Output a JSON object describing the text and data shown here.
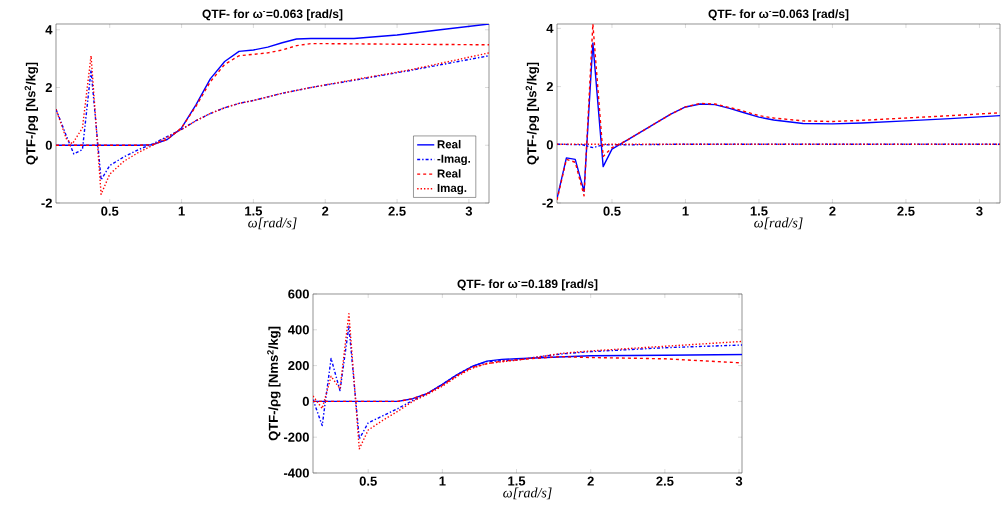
{
  "chart_data": [
    {
      "type": "line",
      "title": "QTF- for ω$^{-}$=0.063 [rad/s]",
      "xlabel": "ω[rad/s]",
      "ylabel": "QTF-/ρg [Ns$^{2}$/kg]",
      "xlim": [
        0.126,
        3.14
      ],
      "ylim": [
        -2,
        4.2
      ],
      "xticks": [
        0.5,
        1,
        1.5,
        2,
        2.5,
        3
      ],
      "yticks": [
        -2,
        0,
        2,
        4
      ],
      "legend": "bottom right",
      "series": [
        {
          "name": "Real",
          "color": "#0000ff",
          "line_style": "solid",
          "x": [
            0.126,
            0.3,
            0.5,
            0.7,
            0.8,
            0.9,
            1.0,
            1.1,
            1.2,
            1.3,
            1.4,
            1.5,
            1.6,
            1.7,
            1.8,
            1.9,
            2.0,
            2.2,
            2.5,
            2.8,
            3.14
          ],
          "values": [
            0,
            0,
            0,
            0,
            0.02,
            0.2,
            0.6,
            1.4,
            2.3,
            2.9,
            3.25,
            3.3,
            3.4,
            3.55,
            3.68,
            3.7,
            3.7,
            3.7,
            3.82,
            4.0,
            4.2
          ]
        },
        {
          "name": "-Imag.",
          "color": "#0000ff",
          "line_style": "dashdot",
          "x": [
            0.126,
            0.2,
            0.25,
            0.31,
            0.37,
            0.44,
            0.5,
            0.6,
            0.7,
            0.8,
            0.9,
            1.0,
            1.1,
            1.2,
            1.3,
            1.4,
            1.5,
            1.7,
            1.9,
            2.2,
            2.6,
            3.14
          ],
          "values": [
            1.25,
            0.3,
            -0.3,
            -0.15,
            2.6,
            -1.2,
            -0.7,
            -0.4,
            -0.15,
            0.05,
            0.3,
            0.55,
            0.85,
            1.1,
            1.3,
            1.45,
            1.55,
            1.8,
            2.0,
            2.25,
            2.6,
            3.1
          ]
        },
        {
          "name": "Real",
          "color": "#ff0000",
          "line_style": "dashed",
          "x": [
            0.126,
            0.3,
            0.5,
            0.7,
            0.8,
            0.9,
            1.0,
            1.1,
            1.2,
            1.3,
            1.4,
            1.5,
            1.6,
            1.7,
            1.8,
            1.9,
            2.0,
            2.5,
            3.14
          ],
          "values": [
            0,
            0,
            0,
            0,
            0.02,
            0.2,
            0.6,
            1.35,
            2.2,
            2.8,
            3.1,
            3.15,
            3.2,
            3.3,
            3.45,
            3.52,
            3.52,
            3.5,
            3.48
          ]
        },
        {
          "name": "Imag.",
          "color": "#ff0000",
          "line_style": "dotted",
          "x": [
            0.126,
            0.2,
            0.24,
            0.31,
            0.37,
            0.44,
            0.5,
            0.6,
            0.7,
            0.8,
            0.9,
            1.0,
            1.1,
            1.2,
            1.3,
            1.4,
            1.5,
            1.7,
            1.9,
            2.2,
            2.6,
            3.14
          ],
          "values": [
            1.25,
            0.2,
            0.05,
            0.6,
            3.1,
            -1.7,
            -1.0,
            -0.55,
            -0.25,
            0.0,
            0.28,
            0.55,
            0.85,
            1.1,
            1.3,
            1.45,
            1.55,
            1.8,
            2.0,
            2.27,
            2.62,
            3.2
          ]
        }
      ]
    },
    {
      "type": "line",
      "title": "QTF- for ω$^{-}$=0.063 [rad/s]",
      "xlabel": "ω[rad/s]",
      "ylabel": "QTF-/ρg [Ns$^{2}$/kg]",
      "xlim": [
        0.126,
        3.14
      ],
      "ylim": [
        -2,
        4.15
      ],
      "xticks": [
        0.5,
        1,
        1.5,
        2,
        2.5,
        3
      ],
      "yticks": [
        -2,
        0,
        2,
        4
      ],
      "series": [
        {
          "color": "#0000ff",
          "line_style": "solid",
          "x": [
            0.126,
            0.19,
            0.25,
            0.31,
            0.37,
            0.44,
            0.5,
            0.6,
            0.7,
            0.8,
            0.9,
            1.0,
            1.1,
            1.2,
            1.3,
            1.4,
            1.5,
            1.6,
            1.8,
            2.0,
            2.2,
            2.5,
            2.8,
            3.14
          ],
          "values": [
            -1.85,
            -0.45,
            -0.5,
            -1.6,
            3.5,
            -0.75,
            -0.15,
            0.15,
            0.45,
            0.75,
            1.05,
            1.3,
            1.4,
            1.38,
            1.25,
            1.1,
            0.95,
            0.85,
            0.73,
            0.72,
            0.75,
            0.82,
            0.9,
            1.0
          ]
        },
        {
          "color": "#0000ff",
          "line_style": "dashdot",
          "x": [
            0.126,
            0.3,
            0.37,
            0.44,
            0.6,
            1.0,
            2.0,
            3.14
          ],
          "values": [
            0.02,
            0.0,
            -0.1,
            0.0,
            0.0,
            0.02,
            0.02,
            0.02
          ]
        },
        {
          "color": "#ff0000",
          "line_style": "dashed",
          "x": [
            0.126,
            0.19,
            0.25,
            0.31,
            0.37,
            0.44,
            0.5,
            0.6,
            0.7,
            0.8,
            0.9,
            1.0,
            1.1,
            1.2,
            1.3,
            1.4,
            1.5,
            1.6,
            1.8,
            2.0,
            2.2,
            2.5,
            2.8,
            3.14
          ],
          "values": [
            -1.9,
            -0.5,
            -0.6,
            -1.75,
            4.15,
            -0.4,
            -0.1,
            0.15,
            0.45,
            0.75,
            1.05,
            1.3,
            1.42,
            1.4,
            1.28,
            1.15,
            1.0,
            0.92,
            0.82,
            0.8,
            0.84,
            0.92,
            1.0,
            1.1
          ]
        },
        {
          "color": "#ff0000",
          "line_style": "dotted",
          "x": [
            0.126,
            0.5,
            1.0,
            2.0,
            3.14
          ],
          "values": [
            0.02,
            0.02,
            0.02,
            0.02,
            0.02
          ]
        }
      ]
    },
    {
      "type": "line",
      "title": "QTF- for ω$^{-}$=0.189 [rad/s]",
      "xlabel": "ω[rad/s]",
      "ylabel": "QTF-/ρg [Nms$^{2}$/kg]",
      "xlim": [
        0.128,
        3.02
      ],
      "ylim": [
        -400,
        600
      ],
      "xticks": [
        0.5,
        1,
        1.5,
        2,
        2.5,
        3
      ],
      "yticks": [
        -400,
        -200,
        0,
        200,
        400,
        600
      ],
      "series": [
        {
          "color": "#0000ff",
          "line_style": "solid",
          "x": [
            0.128,
            0.3,
            0.5,
            0.7,
            0.8,
            0.9,
            1.0,
            1.1,
            1.2,
            1.3,
            1.4,
            1.5,
            1.7,
            2.0,
            2.5,
            3.02
          ],
          "values": [
            0,
            0,
            0,
            0,
            15,
            45,
            95,
            150,
            195,
            225,
            235,
            238,
            245,
            255,
            258,
            262
          ]
        },
        {
          "color": "#0000ff",
          "line_style": "dashdot",
          "x": [
            0.128,
            0.19,
            0.25,
            0.31,
            0.37,
            0.44,
            0.5,
            0.6,
            0.7,
            0.8,
            0.9,
            1.0,
            1.1,
            1.2,
            1.3,
            1.5,
            1.8,
            2.0,
            2.5,
            3.02
          ],
          "values": [
            10,
            -135,
            240,
            60,
            420,
            -210,
            -120,
            -80,
            -40,
            5,
            45,
            95,
            150,
            195,
            222,
            232,
            265,
            278,
            300,
            315
          ]
        },
        {
          "color": "#ff0000",
          "line_style": "dashed",
          "x": [
            0.128,
            0.3,
            0.5,
            0.7,
            0.8,
            0.9,
            1.0,
            1.1,
            1.2,
            1.3,
            1.4,
            1.5,
            1.7,
            1.8,
            2.0,
            2.5,
            3.02
          ],
          "values": [
            0,
            0,
            0,
            0,
            15,
            45,
            90,
            145,
            190,
            210,
            225,
            232,
            245,
            250,
            245,
            238,
            215
          ]
        },
        {
          "color": "#ff0000",
          "line_style": "dotted",
          "x": [
            0.128,
            0.19,
            0.25,
            0.31,
            0.37,
            0.44,
            0.5,
            0.6,
            0.7,
            0.8,
            0.9,
            1.0,
            1.1,
            1.2,
            1.3,
            1.5,
            1.8,
            2.0,
            2.5,
            3.02
          ],
          "values": [
            30,
            -40,
            140,
            70,
            490,
            -265,
            -160,
            -105,
            -55,
            0,
            40,
            85,
            140,
            185,
            212,
            230,
            268,
            282,
            308,
            335
          ]
        }
      ]
    }
  ]
}
